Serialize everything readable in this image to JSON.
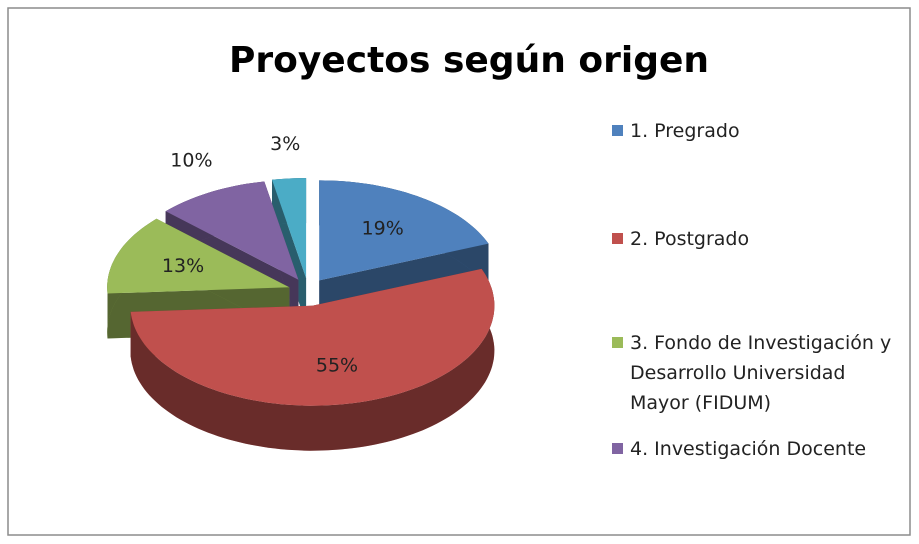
{
  "chart_data": {
    "type": "pie3d",
    "title": "Proyectos según origen",
    "categories": [
      "1. Pregrado",
      "2. Postgrado",
      "3. Fondo de Investigación y Desarrollo Universidad Mayor (FIDUM)",
      "4. Investigación Docente",
      null
    ],
    "values": [
      19,
      55,
      13,
      10,
      3
    ],
    "value_labels": [
      "19%",
      "55%",
      "13%",
      "10%",
      "3%"
    ],
    "colors": [
      "#4f81bd",
      "#c0504d",
      "#9bbb59",
      "#8064a2",
      "#4bacc6"
    ],
    "legend": "right"
  }
}
